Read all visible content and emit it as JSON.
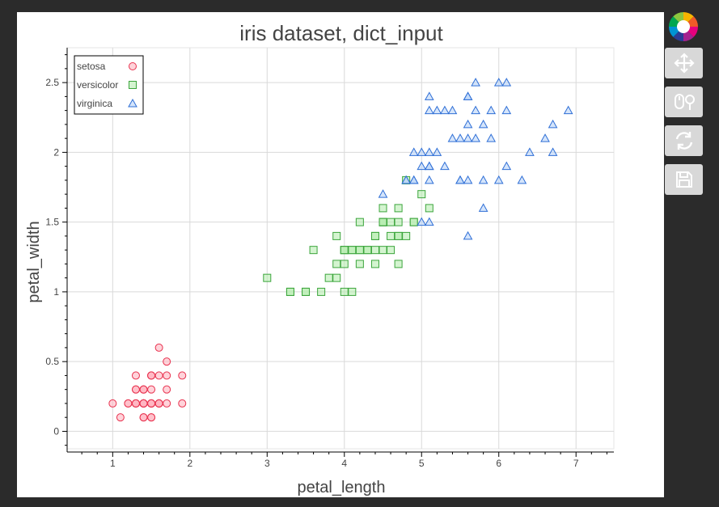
{
  "toolbar": {
    "tools": [
      {
        "name": "pan-tool",
        "icon": "move-arrows-icon"
      },
      {
        "name": "wheel-zoom-tool",
        "icon": "mouse-magnifier-icon"
      },
      {
        "name": "reset-tool",
        "icon": "refresh-icon"
      },
      {
        "name": "save-tool",
        "icon": "floppy-disk-icon"
      }
    ],
    "logo_icon": "bokeh-logo-icon"
  },
  "chart_data": {
    "type": "scatter",
    "title": "iris dataset, dict_input",
    "xlabel": "petal_length",
    "ylabel": "petal_width",
    "xlim": [
      0.41,
      7.49
    ],
    "ylim": [
      -0.125,
      2.75
    ],
    "xticks": [
      1,
      2,
      3,
      4,
      5,
      6,
      7
    ],
    "xtick_labels": [
      "1",
      "2",
      "3",
      "4",
      "5",
      "6",
      "7"
    ],
    "yticks": [
      0,
      0.5,
      1,
      1.5,
      2,
      2.5
    ],
    "ytick_labels": [
      "0",
      "0.5",
      "1",
      "1.5",
      "2",
      "2.5"
    ],
    "grid": true,
    "legend_position": "top-left",
    "series": [
      {
        "name": "setosa",
        "marker": "circle",
        "color": "#e8324f",
        "fill": "#ffb6c1",
        "points": [
          [
            1.4,
            0.2
          ],
          [
            1.4,
            0.2
          ],
          [
            1.3,
            0.2
          ],
          [
            1.5,
            0.2
          ],
          [
            1.4,
            0.2
          ],
          [
            1.7,
            0.4
          ],
          [
            1.4,
            0.3
          ],
          [
            1.5,
            0.2
          ],
          [
            1.4,
            0.2
          ],
          [
            1.5,
            0.1
          ],
          [
            1.5,
            0.2
          ],
          [
            1.6,
            0.2
          ],
          [
            1.4,
            0.1
          ],
          [
            1.1,
            0.1
          ],
          [
            1.2,
            0.2
          ],
          [
            1.5,
            0.4
          ],
          [
            1.3,
            0.4
          ],
          [
            1.4,
            0.3
          ],
          [
            1.7,
            0.3
          ],
          [
            1.5,
            0.3
          ],
          [
            1.7,
            0.2
          ],
          [
            1.5,
            0.4
          ],
          [
            1.0,
            0.2
          ],
          [
            1.7,
            0.5
          ],
          [
            1.9,
            0.2
          ],
          [
            1.6,
            0.2
          ],
          [
            1.6,
            0.4
          ],
          [
            1.5,
            0.2
          ],
          [
            1.4,
            0.2
          ],
          [
            1.6,
            0.2
          ],
          [
            1.6,
            0.2
          ],
          [
            1.5,
            0.4
          ],
          [
            1.5,
            0.1
          ],
          [
            1.4,
            0.2
          ],
          [
            1.5,
            0.2
          ],
          [
            1.2,
            0.2
          ],
          [
            1.3,
            0.2
          ],
          [
            1.4,
            0.1
          ],
          [
            1.3,
            0.2
          ],
          [
            1.5,
            0.2
          ],
          [
            1.3,
            0.3
          ],
          [
            1.3,
            0.3
          ],
          [
            1.3,
            0.2
          ],
          [
            1.6,
            0.6
          ],
          [
            1.9,
            0.4
          ],
          [
            1.4,
            0.3
          ],
          [
            1.6,
            0.2
          ],
          [
            1.4,
            0.2
          ],
          [
            1.5,
            0.2
          ],
          [
            1.4,
            0.2
          ]
        ]
      },
      {
        "name": "versicolor",
        "marker": "square",
        "color": "#3ca53c",
        "fill": "#b8ecb0",
        "points": [
          [
            4.7,
            1.4
          ],
          [
            4.5,
            1.5
          ],
          [
            4.9,
            1.5
          ],
          [
            4.0,
            1.3
          ],
          [
            4.6,
            1.5
          ],
          [
            4.5,
            1.3
          ],
          [
            4.7,
            1.6
          ],
          [
            3.3,
            1.0
          ],
          [
            4.6,
            1.3
          ],
          [
            3.9,
            1.4
          ],
          [
            3.5,
            1.0
          ],
          [
            4.2,
            1.5
          ],
          [
            4.0,
            1.0
          ],
          [
            4.7,
            1.4
          ],
          [
            3.6,
            1.3
          ],
          [
            4.4,
            1.4
          ],
          [
            4.5,
            1.5
          ],
          [
            4.1,
            1.0
          ],
          [
            4.5,
            1.5
          ],
          [
            3.9,
            1.1
          ],
          [
            4.8,
            1.8
          ],
          [
            4.0,
            1.3
          ],
          [
            4.9,
            1.5
          ],
          [
            4.7,
            1.2
          ],
          [
            4.3,
            1.3
          ],
          [
            4.4,
            1.4
          ],
          [
            4.8,
            1.4
          ],
          [
            5.0,
            1.7
          ],
          [
            4.5,
            1.5
          ],
          [
            3.5,
            1.0
          ],
          [
            3.8,
            1.1
          ],
          [
            3.7,
            1.0
          ],
          [
            3.9,
            1.2
          ],
          [
            5.1,
            1.6
          ],
          [
            4.5,
            1.5
          ],
          [
            4.5,
            1.6
          ],
          [
            4.7,
            1.5
          ],
          [
            4.4,
            1.3
          ],
          [
            4.1,
            1.3
          ],
          [
            4.0,
            1.3
          ],
          [
            4.4,
            1.2
          ],
          [
            4.6,
            1.4
          ],
          [
            4.0,
            1.2
          ],
          [
            3.3,
            1.0
          ],
          [
            4.2,
            1.3
          ],
          [
            4.2,
            1.2
          ],
          [
            4.2,
            1.3
          ],
          [
            4.3,
            1.3
          ],
          [
            3.0,
            1.1
          ],
          [
            4.1,
            1.3
          ]
        ]
      },
      {
        "name": "virginica",
        "marker": "triangle",
        "color": "#2f6fd6",
        "fill": "#b9d3f8",
        "points": [
          [
            6.0,
            2.5
          ],
          [
            5.1,
            1.9
          ],
          [
            5.9,
            2.1
          ],
          [
            5.6,
            1.8
          ],
          [
            5.8,
            2.2
          ],
          [
            6.6,
            2.1
          ],
          [
            4.5,
            1.7
          ],
          [
            6.3,
            1.8
          ],
          [
            5.8,
            1.8
          ],
          [
            6.1,
            2.5
          ],
          [
            5.1,
            2.0
          ],
          [
            5.3,
            1.9
          ],
          [
            5.5,
            2.1
          ],
          [
            5.0,
            2.0
          ],
          [
            5.1,
            2.4
          ],
          [
            5.3,
            2.3
          ],
          [
            5.5,
            1.8
          ],
          [
            6.7,
            2.2
          ],
          [
            6.9,
            2.3
          ],
          [
            5.0,
            1.5
          ],
          [
            5.7,
            2.3
          ],
          [
            4.9,
            2.0
          ],
          [
            6.7,
            2.0
          ],
          [
            4.9,
            1.8
          ],
          [
            5.7,
            2.1
          ],
          [
            6.0,
            1.8
          ],
          [
            4.8,
            1.8
          ],
          [
            4.9,
            1.8
          ],
          [
            5.6,
            2.1
          ],
          [
            5.8,
            1.6
          ],
          [
            6.1,
            1.9
          ],
          [
            6.4,
            2.0
          ],
          [
            5.6,
            2.2
          ],
          [
            5.1,
            1.5
          ],
          [
            5.6,
            1.4
          ],
          [
            6.1,
            2.3
          ],
          [
            5.6,
            2.4
          ],
          [
            5.5,
            1.8
          ],
          [
            4.8,
            1.8
          ],
          [
            5.4,
            2.1
          ],
          [
            5.6,
            2.4
          ],
          [
            5.1,
            2.3
          ],
          [
            5.1,
            1.9
          ],
          [
            5.9,
            2.3
          ],
          [
            5.7,
            2.5
          ],
          [
            5.2,
            2.3
          ],
          [
            5.0,
            1.9
          ],
          [
            5.2,
            2.0
          ],
          [
            5.4,
            2.3
          ],
          [
            5.1,
            1.8
          ]
        ]
      }
    ]
  }
}
